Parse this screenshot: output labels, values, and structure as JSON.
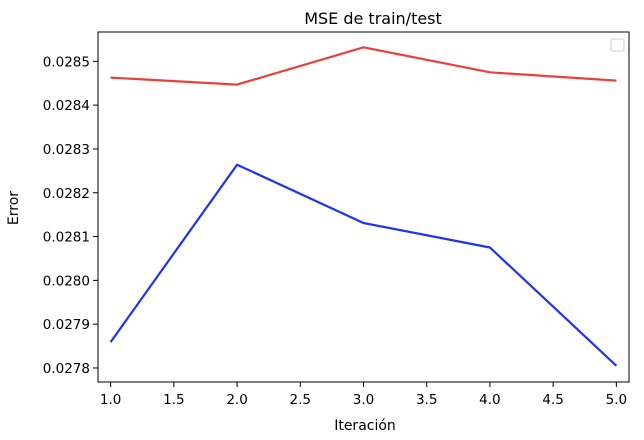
{
  "chart_data": {
    "type": "line",
    "title": "MSE de train/test",
    "xlabel": "Iteración",
    "ylabel": "Error",
    "xlim": [
      0.9,
      5.1
    ],
    "ylim": [
      0.027768,
      0.028567
    ],
    "x_ticks": [
      1.0,
      1.5,
      2.0,
      2.5,
      3.0,
      3.5,
      4.0,
      4.5,
      5.0
    ],
    "x_tick_labels": [
      "1.0",
      "1.5",
      "2.0",
      "2.5",
      "3.0",
      "3.5",
      "4.0",
      "4.5",
      "5.0"
    ],
    "y_ticks": [
      0.0278,
      0.0279,
      0.028,
      0.0281,
      0.0282,
      0.0283,
      0.0284,
      0.0285
    ],
    "y_tick_labels": [
      "0.0278",
      "0.0279",
      "0.0280",
      "0.0281",
      "0.0282",
      "0.0283",
      "0.0284",
      "0.0285"
    ],
    "grid": false,
    "legend": "top-right, empty",
    "series": [
      {
        "color": "#e8413a",
        "x": [
          1,
          2,
          3,
          4,
          5
        ],
        "y": [
          0.028463,
          0.028447,
          0.028532,
          0.028475,
          0.028456
        ]
      },
      {
        "color": "#2233ee",
        "x": [
          1,
          2,
          3,
          4,
          5
        ],
        "y": [
          0.027859,
          0.028264,
          0.028131,
          0.028075,
          0.027805
        ]
      }
    ]
  }
}
